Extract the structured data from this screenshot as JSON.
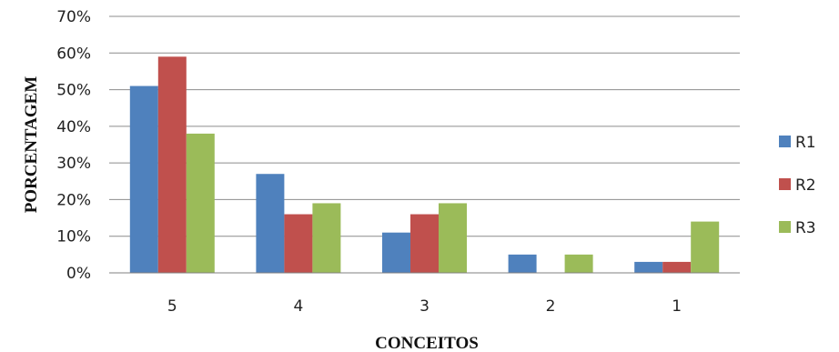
{
  "chart_data": {
    "type": "bar",
    "title": "",
    "xlabel": "CONCEITOS",
    "ylabel": "PORCENTAGEM",
    "categories": [
      "5",
      "4",
      "3",
      "2",
      "1"
    ],
    "series": [
      {
        "name": "R1",
        "color": "#4F81BD",
        "values": [
          51,
          27,
          11,
          5,
          3
        ]
      },
      {
        "name": "R2",
        "color": "#C0504D",
        "values": [
          59,
          16,
          16,
          0,
          3
        ]
      },
      {
        "name": "R3",
        "color": "#9BBB59",
        "values": [
          38,
          19,
          19,
          5,
          14
        ]
      }
    ],
    "ylim": [
      0,
      70
    ],
    "yticks": [
      "0%",
      "10%",
      "20%",
      "30%",
      "40%",
      "50%",
      "60%",
      "70%"
    ],
    "grid": true,
    "legend": "right"
  }
}
